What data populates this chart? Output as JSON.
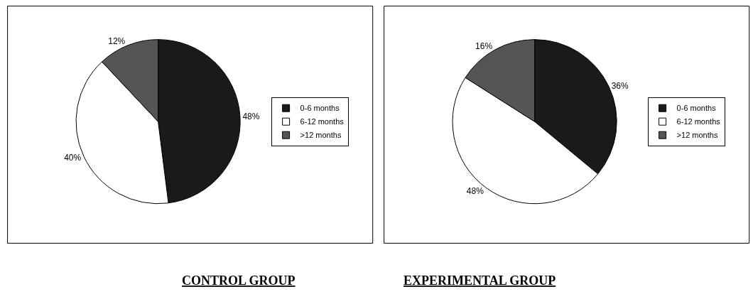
{
  "chart_data": [
    {
      "type": "pie",
      "title": "CONTROL GROUP",
      "categories": [
        "0-6 months",
        "6-12 months",
        ">12 months"
      ],
      "values": [
        48,
        40,
        12
      ],
      "value_labels": [
        "48%",
        "40%",
        "12%"
      ],
      "colors": [
        "#1a1a1a",
        "#ffffff",
        "#555555"
      ],
      "legend": "right"
    },
    {
      "type": "pie",
      "title": "EXPERIMENTAL GROUP",
      "categories": [
        "0-6 months",
        "6-12 months",
        ">12 months"
      ],
      "values": [
        36,
        48,
        16
      ],
      "value_labels": [
        "36%",
        "48%",
        "16%"
      ],
      "colors": [
        "#1a1a1a",
        "#ffffff",
        "#555555"
      ],
      "legend": "right"
    }
  ]
}
